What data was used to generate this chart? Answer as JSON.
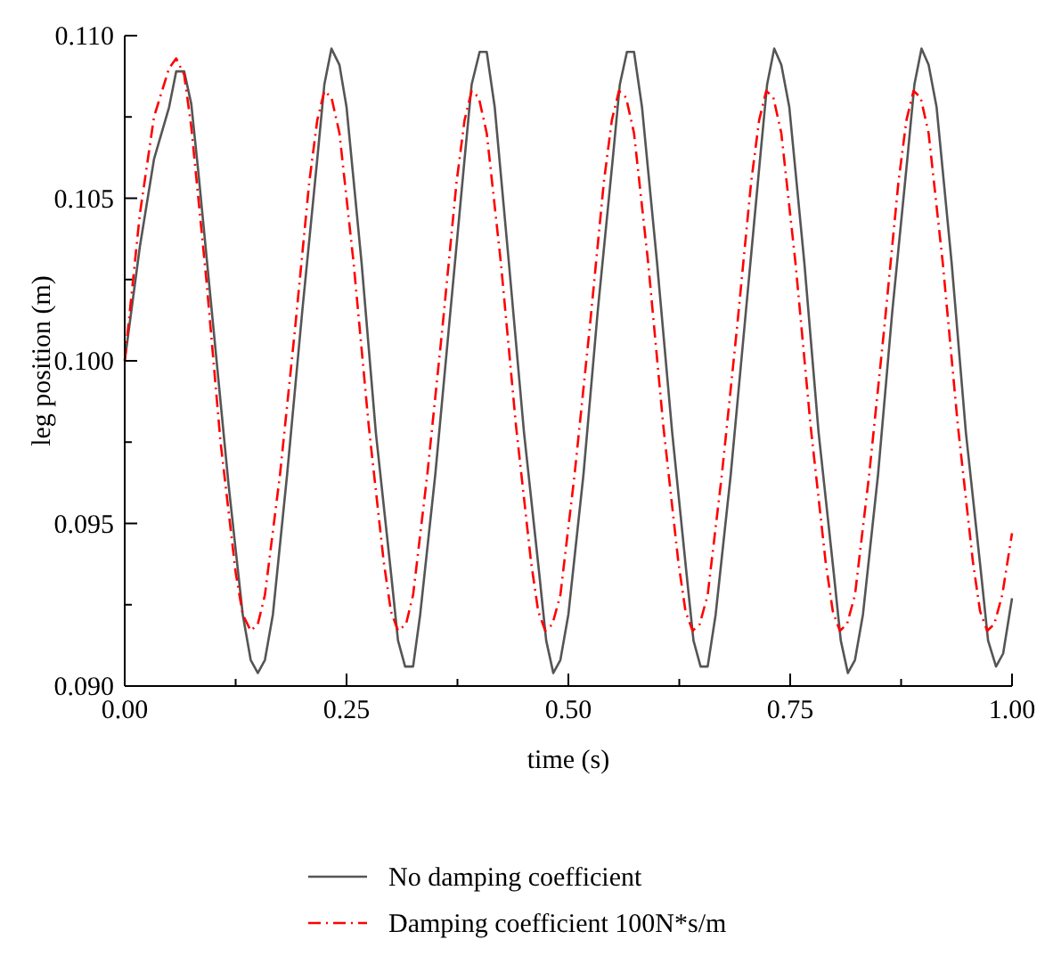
{
  "chart_data": {
    "type": "line",
    "xlabel": "time (s)",
    "ylabel": "leg position (m)",
    "xlim": [
      0,
      1
    ],
    "ylim": [
      0.09,
      0.11
    ],
    "xticks": [
      {
        "value": 0,
        "label": "0.00"
      },
      {
        "value": 0.125,
        "label": null
      },
      {
        "value": 0.25,
        "label": "0.25"
      },
      {
        "value": 0.375,
        "label": null
      },
      {
        "value": 0.5,
        "label": "0.50"
      },
      {
        "value": 0.625,
        "label": null
      },
      {
        "value": 0.75,
        "label": "0.75"
      },
      {
        "value": 0.875,
        "label": null
      },
      {
        "value": 1,
        "label": "1.00"
      }
    ],
    "yticks": [
      {
        "value": 0.09,
        "label": "0.090"
      },
      {
        "value": 0.0925,
        "label": null
      },
      {
        "value": 0.095,
        "label": "0.095"
      },
      {
        "value": 0.0975,
        "label": null
      },
      {
        "value": 0.1,
        "label": "0.100"
      },
      {
        "value": 0.1025,
        "label": null
      },
      {
        "value": 0.105,
        "label": "0.105"
      },
      {
        "value": 0.1075,
        "label": null
      },
      {
        "value": 0.11,
        "label": "0.110"
      }
    ],
    "grid": false,
    "legend": "bottom",
    "marker": "none",
    "series": [
      {
        "name": "No damping coefficient",
        "color": "#555555",
        "line_style": "solid",
        "x": [
          0,
          0.017,
          0.033,
          0.05,
          0.058,
          0.067,
          0.075,
          0.083,
          0.1,
          0.117,
          0.133,
          0.142,
          0.15,
          0.158,
          0.167,
          0.183,
          0.2,
          0.217,
          0.225,
          0.233,
          0.242,
          0.25,
          0.267,
          0.283,
          0.3,
          0.308,
          0.316,
          0.325,
          0.333,
          0.35,
          0.367,
          0.383,
          0.391,
          0.4,
          0.408,
          0.417,
          0.433,
          0.45,
          0.467,
          0.475,
          0.483,
          0.491,
          0.5,
          0.517,
          0.533,
          0.55,
          0.558,
          0.566,
          0.574,
          0.583,
          0.6,
          0.617,
          0.633,
          0.641,
          0.649,
          0.657,
          0.666,
          0.683,
          0.7,
          0.716,
          0.724,
          0.732,
          0.74,
          0.749,
          0.766,
          0.782,
          0.799,
          0.807,
          0.815,
          0.823,
          0.832,
          0.849,
          0.865,
          0.882,
          0.89,
          0.898,
          0.906,
          0.915,
          0.932,
          0.948,
          0.965,
          0.973,
          0.982,
          0.99,
          1.0
        ],
        "values": [
          0.1,
          0.1035,
          0.1062,
          0.1078,
          0.1089,
          0.1089,
          0.1079,
          0.1058,
          0.101,
          0.0962,
          0.0922,
          0.0908,
          0.0904,
          0.0908,
          0.0922,
          0.0965,
          0.1015,
          0.1062,
          0.1085,
          0.1096,
          0.1091,
          0.1078,
          0.103,
          0.0978,
          0.0935,
          0.0914,
          0.0906,
          0.0906,
          0.0922,
          0.0965,
          0.1015,
          0.1062,
          0.1085,
          0.1095,
          0.1095,
          0.1078,
          0.103,
          0.0978,
          0.0935,
          0.0914,
          0.0904,
          0.0908,
          0.0922,
          0.0965,
          0.1015,
          0.1062,
          0.1085,
          0.1095,
          0.1095,
          0.1078,
          0.103,
          0.0978,
          0.0935,
          0.0914,
          0.0906,
          0.0906,
          0.0922,
          0.0965,
          0.1015,
          0.1062,
          0.1085,
          0.1096,
          0.1091,
          0.1078,
          0.103,
          0.0978,
          0.0935,
          0.0914,
          0.0904,
          0.0908,
          0.0922,
          0.0965,
          0.1015,
          0.1062,
          0.1085,
          0.1096,
          0.1091,
          0.1078,
          0.103,
          0.0978,
          0.0935,
          0.0914,
          0.0906,
          0.091,
          0.0927
        ]
      },
      {
        "name": "Damping coefficient 100N*s/m",
        "color": "#ff0000",
        "line_style": "dashdot",
        "x": [
          0,
          0.017,
          0.033,
          0.05,
          0.058,
          0.067,
          0.075,
          0.092,
          0.108,
          0.125,
          0.133,
          0.142,
          0.15,
          0.158,
          0.175,
          0.192,
          0.208,
          0.217,
          0.225,
          0.233,
          0.242,
          0.258,
          0.275,
          0.292,
          0.3,
          0.308,
          0.317,
          0.325,
          0.341,
          0.358,
          0.374,
          0.383,
          0.391,
          0.399,
          0.408,
          0.424,
          0.441,
          0.458,
          0.466,
          0.474,
          0.482,
          0.491,
          0.507,
          0.524,
          0.54,
          0.549,
          0.557,
          0.565,
          0.574,
          0.59,
          0.607,
          0.624,
          0.632,
          0.64,
          0.648,
          0.657,
          0.673,
          0.69,
          0.706,
          0.715,
          0.723,
          0.731,
          0.74,
          0.756,
          0.773,
          0.79,
          0.798,
          0.806,
          0.814,
          0.823,
          0.839,
          0.856,
          0.872,
          0.881,
          0.889,
          0.897,
          0.906,
          0.922,
          0.939,
          0.956,
          0.964,
          0.972,
          0.98,
          0.989,
          1.0
        ],
        "values": [
          0.1,
          0.1045,
          0.1075,
          0.109,
          0.1093,
          0.1088,
          0.1072,
          0.1025,
          0.0975,
          0.0935,
          0.0922,
          0.0917,
          0.0919,
          0.0928,
          0.0965,
          0.101,
          0.1055,
          0.1074,
          0.1083,
          0.1081,
          0.107,
          0.103,
          0.098,
          0.0938,
          0.0923,
          0.0917,
          0.0919,
          0.0928,
          0.0965,
          0.101,
          0.1055,
          0.1074,
          0.1083,
          0.1081,
          0.107,
          0.103,
          0.098,
          0.0938,
          0.0923,
          0.0917,
          0.0919,
          0.0928,
          0.0965,
          0.101,
          0.1055,
          0.1074,
          0.1083,
          0.1081,
          0.107,
          0.103,
          0.098,
          0.0938,
          0.0923,
          0.0917,
          0.0919,
          0.0928,
          0.0965,
          0.101,
          0.1055,
          0.1074,
          0.1083,
          0.1081,
          0.107,
          0.103,
          0.098,
          0.0938,
          0.0923,
          0.0917,
          0.0919,
          0.0928,
          0.0965,
          0.101,
          0.1055,
          0.1074,
          0.1083,
          0.1081,
          0.107,
          0.103,
          0.098,
          0.0938,
          0.0923,
          0.0917,
          0.0919,
          0.0928,
          0.0947
        ]
      }
    ]
  }
}
